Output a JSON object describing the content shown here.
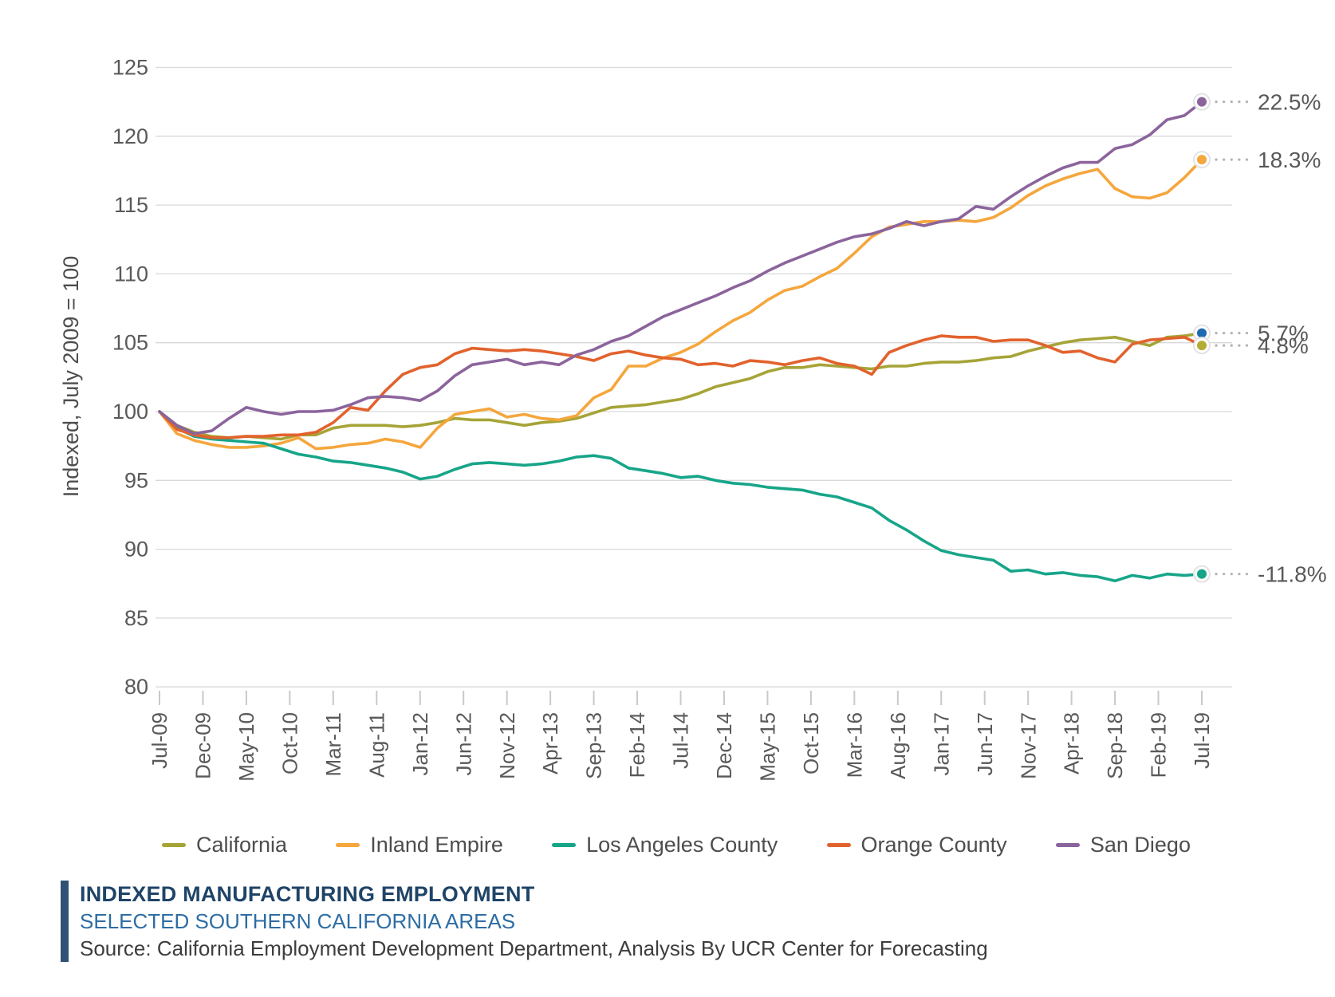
{
  "chart_data": {
    "type": "line",
    "title": "INDEXED MANUFACTURING EMPLOYMENT",
    "subtitle": "SELECTED SOUTHERN CALIFORNIA AREAS",
    "source": "Source: California Employment Development Department, Analysis By UCR Center for Forecasting",
    "y_axis": {
      "title": "Indexed, July 2009 = 100",
      "min": 80,
      "max": 125,
      "tick_step": 5,
      "ticks": [
        125,
        120,
        115,
        110,
        105,
        100,
        95,
        90,
        85,
        80
      ],
      "grid": true
    },
    "x_axis": {
      "tick_labels": [
        "Jul-09",
        "Dec-09",
        "May-10",
        "Oct-10",
        "Mar-11",
        "Aug-11",
        "Jan-12",
        "Jun-12",
        "Nov-12",
        "Apr-13",
        "Sep-13",
        "Feb-14",
        "Jul-14",
        "Dec-14",
        "May-15",
        "Oct-15",
        "Mar-16",
        "Aug-16",
        "Jan-17",
        "Jun-17",
        "Nov-17",
        "Apr-18",
        "Sep-18",
        "Feb-19",
        "Jul-19"
      ],
      "tick_month_interval": 5,
      "total_months": 120
    },
    "sample_month_step": 2,
    "legend_position": "bottom",
    "series": [
      {
        "name": "California",
        "color": "#A6A437",
        "marker_color": "#1F6BB0",
        "end_label": "5.7%",
        "values": [
          100,
          99.0,
          98.5,
          98.2,
          98.1,
          98.2,
          98.1,
          98.0,
          98.3,
          98.3,
          98.8,
          99.0,
          99.0,
          99.0,
          98.9,
          99.0,
          99.2,
          99.5,
          99.4,
          99.4,
          99.2,
          99.0,
          99.2,
          99.3,
          99.5,
          99.9,
          100.3,
          100.4,
          100.5,
          100.7,
          100.9,
          101.3,
          101.8,
          102.1,
          102.4,
          102.9,
          103.2,
          103.2,
          103.4,
          103.3,
          103.2,
          103.1,
          103.3,
          103.3,
          103.5,
          103.6,
          103.6,
          103.7,
          103.9,
          104.0,
          104.4,
          104.7,
          105.0,
          105.2,
          105.3,
          105.4,
          105.1,
          104.8,
          105.4,
          105.5,
          105.7
        ]
      },
      {
        "name": "Inland Empire",
        "color": "#F5A63C",
        "marker_color": "#F5A63C",
        "end_label": "18.3%",
        "values": [
          100,
          98.4,
          97.9,
          97.6,
          97.4,
          97.4,
          97.5,
          97.7,
          98.1,
          97.3,
          97.4,
          97.6,
          97.7,
          98.0,
          97.8,
          97.4,
          98.8,
          99.8,
          100.0,
          100.2,
          99.6,
          99.8,
          99.5,
          99.4,
          99.7,
          101.0,
          101.6,
          103.3,
          103.3,
          103.9,
          104.3,
          104.9,
          105.8,
          106.6,
          107.2,
          108.1,
          108.8,
          109.1,
          109.8,
          110.4,
          111.5,
          112.7,
          113.4,
          113.6,
          113.8,
          113.8,
          113.9,
          113.8,
          114.1,
          114.8,
          115.7,
          116.4,
          116.9,
          117.3,
          117.6,
          116.2,
          115.6,
          115.5,
          115.9,
          117.0,
          118.3
        ]
      },
      {
        "name": "Los Angeles County",
        "color": "#17A589",
        "marker_color": "#17A589",
        "end_label": "-11.8%",
        "values": [
          100,
          98.8,
          98.2,
          98.0,
          97.9,
          97.8,
          97.7,
          97.3,
          96.9,
          96.7,
          96.4,
          96.3,
          96.1,
          95.9,
          95.6,
          95.1,
          95.3,
          95.8,
          96.2,
          96.3,
          96.2,
          96.1,
          96.2,
          96.4,
          96.7,
          96.8,
          96.6,
          95.9,
          95.7,
          95.5,
          95.2,
          95.3,
          95.0,
          94.8,
          94.7,
          94.5,
          94.4,
          94.3,
          94.0,
          93.8,
          93.4,
          93.0,
          92.1,
          91.4,
          90.6,
          89.9,
          89.6,
          89.4,
          89.2,
          88.4,
          88.5,
          88.2,
          88.3,
          88.1,
          88.0,
          87.7,
          88.1,
          87.9,
          88.2,
          88.1,
          88.2
        ]
      },
      {
        "name": "Orange County",
        "color": "#E2622D",
        "marker_color": "#B3AC35",
        "end_label": "4.8%",
        "values": [
          100,
          98.7,
          98.3,
          98.1,
          98.1,
          98.2,
          98.2,
          98.3,
          98.3,
          98.5,
          99.2,
          100.3,
          100.1,
          101.5,
          102.7,
          103.2,
          103.4,
          104.2,
          104.6,
          104.5,
          104.4,
          104.5,
          104.4,
          104.2,
          104.0,
          103.7,
          104.2,
          104.4,
          104.1,
          103.9,
          103.8,
          103.4,
          103.5,
          103.3,
          103.7,
          103.6,
          103.4,
          103.7,
          103.9,
          103.5,
          103.3,
          102.7,
          104.3,
          104.8,
          105.2,
          105.5,
          105.4,
          105.4,
          105.1,
          105.2,
          105.2,
          104.8,
          104.3,
          104.4,
          103.9,
          103.6,
          104.9,
          105.2,
          105.3,
          105.4,
          104.8
        ]
      },
      {
        "name": "San Diego",
        "color": "#8B649C",
        "marker_color": "#8B649C",
        "end_label": "22.5%",
        "values": [
          100,
          99.0,
          98.4,
          98.6,
          99.5,
          100.3,
          100.0,
          99.8,
          100.0,
          100.0,
          100.1,
          100.5,
          101.0,
          101.1,
          101.0,
          100.8,
          101.5,
          102.6,
          103.4,
          103.6,
          103.8,
          103.4,
          103.6,
          103.4,
          104.1,
          104.5,
          105.1,
          105.5,
          106.2,
          106.9,
          107.4,
          107.9,
          108.4,
          109.0,
          109.5,
          110.2,
          110.8,
          111.3,
          111.8,
          112.3,
          112.7,
          112.9,
          113.3,
          113.8,
          113.5,
          113.8,
          114.0,
          114.9,
          114.7,
          115.6,
          116.4,
          117.1,
          117.7,
          118.1,
          118.1,
          119.1,
          119.4,
          120.1,
          121.2,
          121.5,
          122.5
        ]
      }
    ],
    "colors": {
      "gridline": "#D9D9D9",
      "tick_mark": "#C9C9C9",
      "axis_text": "#595959",
      "end_label_text": "#595959",
      "leader_dots": "#B3B3B3",
      "accent_bar": "#2F5173"
    }
  },
  "footer": {
    "title": "INDEXED MANUFACTURING EMPLOYMENT",
    "subtitle": "SELECTED SOUTHERN CALIFORNIA AREAS",
    "source": "Source: California Employment Development Department, Analysis By UCR Center for Forecasting"
  }
}
